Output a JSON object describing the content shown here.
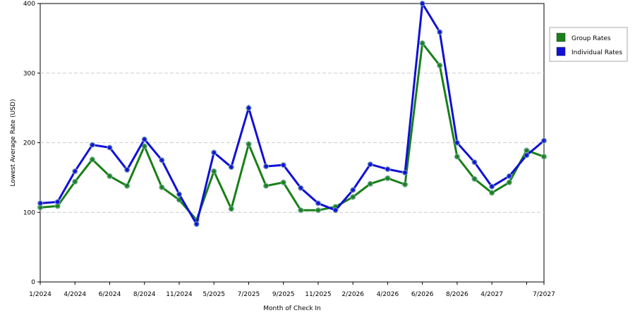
{
  "chart_data": {
    "type": "line",
    "x_label": "Month of Check In",
    "y_label": "Lowest Average Rate (USD)",
    "categories": [
      "1/2024",
      null,
      "4/2024",
      null,
      "6/2024",
      null,
      "8/2024",
      null,
      "11/2024",
      null,
      "5/2025",
      null,
      "7/2025",
      null,
      "9/2025",
      null,
      "11/2025",
      null,
      "2/2026",
      null,
      "4/2026",
      null,
      "6/2026",
      null,
      "8/2026",
      null,
      "4/2027",
      null,
      null,
      "7/2027"
    ],
    "series": [
      {
        "name": "Group Rates",
        "color": "#188018",
        "values": [
          107,
          109,
          144,
          176,
          152,
          138,
          195,
          136,
          118,
          89,
          159,
          105,
          198,
          138,
          143,
          103,
          103,
          108,
          122,
          141,
          149,
          140,
          343,
          311,
          180,
          148,
          128,
          143,
          189,
          180
        ]
      },
      {
        "name": "Individual Rates",
        "color": "#1010d8",
        "values": [
          113,
          115,
          159,
          197,
          193,
          161,
          205,
          175,
          126,
          83,
          186,
          165,
          250,
          166,
          168,
          135,
          113,
          103,
          132,
          169,
          162,
          157,
          400,
          359,
          200,
          172,
          137,
          152,
          182,
          203
        ]
      }
    ],
    "ylim": [
      0,
      400
    ],
    "yticks": [
      0,
      100,
      200,
      300,
      400
    ],
    "grid": true,
    "legend": "right"
  }
}
